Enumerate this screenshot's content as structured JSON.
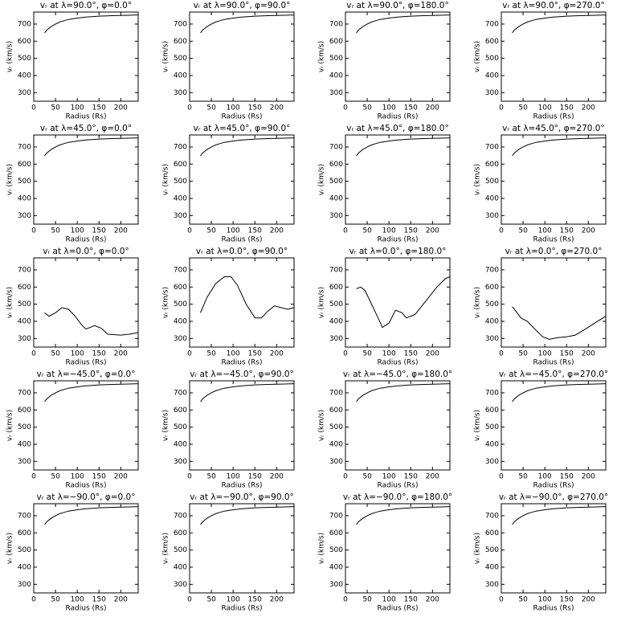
{
  "chart_data": [
    {
      "type": "line",
      "title": "vᵣ at λ=90.0°, φ=0.0°",
      "xlabel": "Radius (Rs)",
      "ylabel": "vᵣ (km/s)",
      "x": [
        25,
        30,
        40,
        50,
        60,
        70,
        80,
        100,
        120,
        150,
        180,
        210,
        240
      ],
      "values": [
        648,
        665,
        685,
        700,
        712,
        720,
        727,
        735,
        741,
        746,
        749,
        751,
        753
      ],
      "xlim": [
        0,
        240
      ],
      "ylim": [
        250,
        770
      ],
      "xticks": [
        0,
        50,
        100,
        150,
        200
      ],
      "yticks": [
        300,
        400,
        500,
        600,
        700
      ]
    },
    {
      "type": "line",
      "title": "vᵣ at λ=90.0°, φ=90.0°",
      "xlabel": "Radius (Rs)",
      "ylabel": "vᵣ (km/s)",
      "x": [
        25,
        30,
        40,
        50,
        60,
        70,
        80,
        100,
        120,
        150,
        180,
        210,
        240
      ],
      "values": [
        648,
        665,
        685,
        700,
        712,
        720,
        727,
        735,
        741,
        746,
        749,
        751,
        753
      ],
      "xlim": [
        0,
        240
      ],
      "ylim": [
        250,
        770
      ],
      "xticks": [
        0,
        50,
        100,
        150,
        200
      ],
      "yticks": [
        300,
        400,
        500,
        600,
        700
      ]
    },
    {
      "type": "line",
      "title": "vᵣ at λ=90.0°, φ=180.0°",
      "xlabel": "Radius (Rs)",
      "ylabel": "vᵣ (km/s)",
      "x": [
        25,
        30,
        40,
        50,
        60,
        70,
        80,
        100,
        120,
        150,
        180,
        210,
        240
      ],
      "values": [
        648,
        665,
        685,
        700,
        712,
        720,
        727,
        735,
        741,
        746,
        749,
        751,
        753
      ],
      "xlim": [
        0,
        240
      ],
      "ylim": [
        250,
        770
      ],
      "xticks": [
        0,
        50,
        100,
        150,
        200
      ],
      "yticks": [
        300,
        400,
        500,
        600,
        700
      ]
    },
    {
      "type": "line",
      "title": "vᵣ at λ=90.0°, φ=270.0°",
      "xlabel": "Radius (Rs)",
      "ylabel": "vᵣ (km/s)",
      "x": [
        25,
        30,
        40,
        50,
        60,
        70,
        80,
        100,
        120,
        150,
        180,
        210,
        240
      ],
      "values": [
        648,
        665,
        685,
        700,
        712,
        720,
        727,
        735,
        741,
        746,
        749,
        751,
        753
      ],
      "xlim": [
        0,
        240
      ],
      "ylim": [
        250,
        770
      ],
      "xticks": [
        0,
        50,
        100,
        150,
        200
      ],
      "yticks": [
        300,
        400,
        500,
        600,
        700
      ]
    },
    {
      "type": "line",
      "title": "vᵣ at λ=45.0°, φ=0.0°",
      "xlabel": "Radius (Rs)",
      "ylabel": "vᵣ (km/s)",
      "x": [
        25,
        30,
        40,
        50,
        60,
        70,
        80,
        100,
        120,
        150,
        180,
        210,
        240
      ],
      "values": [
        648,
        665,
        685,
        700,
        712,
        720,
        727,
        735,
        741,
        746,
        749,
        751,
        753
      ],
      "xlim": [
        0,
        240
      ],
      "ylim": [
        250,
        770
      ],
      "xticks": [
        0,
        50,
        100,
        150,
        200
      ],
      "yticks": [
        300,
        400,
        500,
        600,
        700
      ]
    },
    {
      "type": "line",
      "title": "vᵣ at λ=45.0°, φ=90.0°",
      "xlabel": "Radius (Rs)",
      "ylabel": "vᵣ (km/s)",
      "x": [
        25,
        30,
        40,
        50,
        60,
        70,
        80,
        100,
        120,
        150,
        180,
        210,
        240
      ],
      "values": [
        648,
        665,
        685,
        700,
        712,
        720,
        727,
        735,
        741,
        746,
        749,
        751,
        753
      ],
      "xlim": [
        0,
        240
      ],
      "ylim": [
        250,
        770
      ],
      "xticks": [
        0,
        50,
        100,
        150,
        200
      ],
      "yticks": [
        300,
        400,
        500,
        600,
        700
      ]
    },
    {
      "type": "line",
      "title": "vᵣ at λ=45.0°, φ=180.0°",
      "xlabel": "Radius (Rs)",
      "ylabel": "vᵣ (km/s)",
      "x": [
        25,
        30,
        40,
        50,
        60,
        70,
        80,
        100,
        120,
        150,
        180,
        210,
        240
      ],
      "values": [
        648,
        665,
        685,
        700,
        712,
        720,
        727,
        735,
        741,
        746,
        749,
        751,
        753
      ],
      "xlim": [
        0,
        240
      ],
      "ylim": [
        250,
        770
      ],
      "xticks": [
        0,
        50,
        100,
        150,
        200
      ],
      "yticks": [
        300,
        400,
        500,
        600,
        700
      ]
    },
    {
      "type": "line",
      "title": "vᵣ at λ=45.0°, φ=270.0°",
      "xlabel": "Radius (Rs)",
      "ylabel": "vᵣ (km/s)",
      "x": [
        25,
        30,
        40,
        50,
        60,
        70,
        80,
        100,
        120,
        150,
        180,
        210,
        240
      ],
      "values": [
        648,
        665,
        685,
        700,
        712,
        720,
        727,
        735,
        741,
        746,
        749,
        751,
        753
      ],
      "xlim": [
        0,
        240
      ],
      "ylim": [
        250,
        770
      ],
      "xticks": [
        0,
        50,
        100,
        150,
        200
      ],
      "yticks": [
        300,
        400,
        500,
        600,
        700
      ]
    },
    {
      "type": "line",
      "title": "vᵣ at λ=0.0°, φ=0.0°",
      "xlabel": "Radius (Rs)",
      "ylabel": "vᵣ (km/s)",
      "x": [
        25,
        35,
        50,
        65,
        80,
        95,
        110,
        120,
        140,
        155,
        170,
        200,
        220,
        240
      ],
      "values": [
        450,
        430,
        450,
        480,
        470,
        430,
        380,
        355,
        375,
        360,
        325,
        320,
        325,
        335
      ],
      "xlim": [
        0,
        240
      ],
      "ylim": [
        250,
        770
      ],
      "xticks": [
        0,
        50,
        100,
        150,
        200
      ],
      "yticks": [
        300,
        400,
        500,
        600,
        700
      ]
    },
    {
      "type": "line",
      "title": "vᵣ at λ=0.0°, φ=90.0°",
      "xlabel": "Radius (Rs)",
      "ylabel": "vᵣ (km/s)",
      "x": [
        25,
        40,
        60,
        80,
        95,
        110,
        130,
        150,
        165,
        180,
        195,
        210,
        225,
        240
      ],
      "values": [
        450,
        540,
        620,
        660,
        660,
        610,
        500,
        420,
        420,
        460,
        490,
        480,
        470,
        480
      ],
      "xlim": [
        0,
        240
      ],
      "ylim": [
        250,
        770
      ],
      "xticks": [
        0,
        50,
        100,
        150,
        200
      ],
      "yticks": [
        300,
        400,
        500,
        600,
        700
      ]
    },
    {
      "type": "line",
      "title": "vᵣ at λ=0.0°, φ=180.0°",
      "xlabel": "Radius (Rs)",
      "ylabel": "vᵣ (km/s)",
      "x": [
        25,
        35,
        45,
        60,
        75,
        85,
        100,
        115,
        130,
        140,
        160,
        185,
        210,
        230,
        240
      ],
      "values": [
        590,
        600,
        580,
        500,
        420,
        365,
        390,
        465,
        450,
        420,
        440,
        520,
        600,
        650,
        660
      ],
      "xlim": [
        0,
        240
      ],
      "ylim": [
        250,
        770
      ],
      "xticks": [
        0,
        50,
        100,
        150,
        200
      ],
      "yticks": [
        300,
        400,
        500,
        600,
        700
      ]
    },
    {
      "type": "line",
      "title": "vᵣ at λ=0.0°, φ=270.0°",
      "xlabel": "Radius (Rs)",
      "ylabel": "vᵣ (km/s)",
      "x": [
        25,
        30,
        45,
        60,
        75,
        95,
        110,
        130,
        150,
        170,
        190,
        215,
        240
      ],
      "values": [
        485,
        470,
        420,
        400,
        360,
        310,
        295,
        305,
        310,
        320,
        350,
        390,
        430
      ],
      "xlim": [
        0,
        240
      ],
      "ylim": [
        250,
        770
      ],
      "xticks": [
        0,
        50,
        100,
        150,
        200
      ],
      "yticks": [
        300,
        400,
        500,
        600,
        700
      ]
    },
    {
      "type": "line",
      "title": "vᵣ at λ=−45.0°, φ=0.0°",
      "xlabel": "Radius (Rs)",
      "ylabel": "vᵣ (km/s)",
      "x": [
        25,
        30,
        40,
        50,
        60,
        70,
        80,
        100,
        120,
        150,
        180,
        210,
        240
      ],
      "values": [
        648,
        665,
        685,
        700,
        712,
        720,
        727,
        735,
        741,
        746,
        749,
        751,
        753
      ],
      "xlim": [
        0,
        240
      ],
      "ylim": [
        250,
        770
      ],
      "xticks": [
        0,
        50,
        100,
        150,
        200
      ],
      "yticks": [
        300,
        400,
        500,
        600,
        700
      ]
    },
    {
      "type": "line",
      "title": "vᵣ at λ=−45.0°, φ=90.0°",
      "xlabel": "Radius (Rs)",
      "ylabel": "vᵣ (km/s)",
      "x": [
        25,
        30,
        40,
        50,
        60,
        70,
        80,
        100,
        120,
        150,
        180,
        210,
        240
      ],
      "values": [
        648,
        665,
        685,
        700,
        712,
        720,
        727,
        735,
        741,
        746,
        749,
        751,
        753
      ],
      "xlim": [
        0,
        240
      ],
      "ylim": [
        250,
        770
      ],
      "xticks": [
        0,
        50,
        100,
        150,
        200
      ],
      "yticks": [
        300,
        400,
        500,
        600,
        700
      ]
    },
    {
      "type": "line",
      "title": "vᵣ at λ=−45.0°, φ=180.0°",
      "xlabel": "Radius (Rs)",
      "ylabel": "vᵣ (km/s)",
      "x": [
        25,
        30,
        40,
        50,
        60,
        70,
        80,
        100,
        120,
        150,
        180,
        210,
        240
      ],
      "values": [
        648,
        665,
        685,
        700,
        712,
        720,
        727,
        735,
        741,
        746,
        749,
        751,
        753
      ],
      "xlim": [
        0,
        240
      ],
      "ylim": [
        250,
        770
      ],
      "xticks": [
        0,
        50,
        100,
        150,
        200
      ],
      "yticks": [
        300,
        400,
        500,
        600,
        700
      ]
    },
    {
      "type": "line",
      "title": "vᵣ at λ=−45.0°, φ=270.0°",
      "xlabel": "Radius (Rs)",
      "ylabel": "vᵣ (km/s)",
      "x": [
        25,
        30,
        40,
        50,
        60,
        70,
        80,
        100,
        120,
        150,
        180,
        210,
        240
      ],
      "values": [
        648,
        665,
        685,
        700,
        712,
        720,
        727,
        735,
        741,
        746,
        749,
        751,
        753
      ],
      "xlim": [
        0,
        240
      ],
      "ylim": [
        250,
        770
      ],
      "xticks": [
        0,
        50,
        100,
        150,
        200
      ],
      "yticks": [
        300,
        400,
        500,
        600,
        700
      ]
    },
    {
      "type": "line",
      "title": "vᵣ at λ=−90.0°, φ=0.0°",
      "xlabel": "Radius (Rs)",
      "ylabel": "vᵣ (km/s)",
      "x": [
        25,
        30,
        40,
        50,
        60,
        70,
        80,
        100,
        120,
        150,
        180,
        210,
        240
      ],
      "values": [
        648,
        665,
        685,
        700,
        712,
        720,
        727,
        735,
        741,
        746,
        749,
        751,
        753
      ],
      "xlim": [
        0,
        240
      ],
      "ylim": [
        250,
        770
      ],
      "xticks": [
        0,
        50,
        100,
        150,
        200
      ],
      "yticks": [
        300,
        400,
        500,
        600,
        700
      ]
    },
    {
      "type": "line",
      "title": "vᵣ at λ=−90.0°, φ=90.0°",
      "xlabel": "Radius (Rs)",
      "ylabel": "vᵣ (km/s)",
      "x": [
        25,
        30,
        40,
        50,
        60,
        70,
        80,
        100,
        120,
        150,
        180,
        210,
        240
      ],
      "values": [
        648,
        665,
        685,
        700,
        712,
        720,
        727,
        735,
        741,
        746,
        749,
        751,
        753
      ],
      "xlim": [
        0,
        240
      ],
      "ylim": [
        250,
        770
      ],
      "xticks": [
        0,
        50,
        100,
        150,
        200
      ],
      "yticks": [
        300,
        400,
        500,
        600,
        700
      ]
    },
    {
      "type": "line",
      "title": "vᵣ at λ=−90.0°, φ=180.0°",
      "xlabel": "Radius (Rs)",
      "ylabel": "vᵣ (km/s)",
      "x": [
        25,
        30,
        40,
        50,
        60,
        70,
        80,
        100,
        120,
        150,
        180,
        210,
        240
      ],
      "values": [
        648,
        665,
        685,
        700,
        712,
        720,
        727,
        735,
        741,
        746,
        749,
        751,
        753
      ],
      "xlim": [
        0,
        240
      ],
      "ylim": [
        250,
        770
      ],
      "xticks": [
        0,
        50,
        100,
        150,
        200
      ],
      "yticks": [
        300,
        400,
        500,
        600,
        700
      ]
    },
    {
      "type": "line",
      "title": "vᵣ at λ=−90.0°, φ=270.0°",
      "xlabel": "Radius (Rs)",
      "ylabel": "vᵣ (km/s)",
      "x": [
        25,
        30,
        40,
        50,
        60,
        70,
        80,
        100,
        120,
        150,
        180,
        210,
        240
      ],
      "values": [
        648,
        665,
        685,
        700,
        712,
        720,
        727,
        735,
        741,
        746,
        749,
        751,
        753
      ],
      "xlim": [
        0,
        240
      ],
      "ylim": [
        250,
        770
      ],
      "xticks": [
        0,
        50,
        100,
        150,
        200
      ],
      "yticks": [
        300,
        400,
        500,
        600,
        700
      ]
    }
  ]
}
